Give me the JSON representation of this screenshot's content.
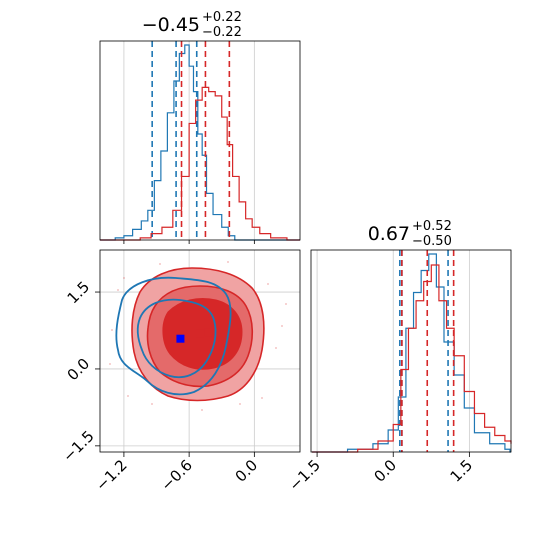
{
  "chart_data": {
    "type": "corner",
    "parameters": [
      {
        "title_value": "−0.45",
        "title_plus": "+0.22",
        "title_minus": "−0.22"
      },
      {
        "title_value": "0.67",
        "title_plus": "+0.52",
        "title_minus": "−0.50"
      }
    ],
    "axis_ranges": {
      "x0": [
        -1.42,
        0.42
      ],
      "x1": [
        -1.62,
        2.32
      ]
    },
    "ticks": {
      "p0_x": [
        {
          "value": -1.2,
          "label": "−1.2"
        },
        {
          "value": -0.6,
          "label": "−0.6"
        },
        {
          "value": 0.0,
          "label": "0.0"
        }
      ],
      "p1": [
        {
          "value": -1.5,
          "label": "−1.5"
        },
        {
          "value": 0.0,
          "label": "0.0"
        },
        {
          "value": 1.5,
          "label": "1.5"
        }
      ]
    },
    "grid": true,
    "series": [
      {
        "color": "#1f77b4",
        "quantiles_p0": [
          -0.94,
          -0.72,
          -0.53
        ],
        "quantiles_p1": [
          0.13,
          0.17,
          1.08
        ],
        "hist_p0": [
          {
            "x": -1.42,
            "y": 0
          },
          {
            "x": -1.28,
            "y": 1
          },
          {
            "x": -1.2,
            "y": 2
          },
          {
            "x": -1.12,
            "y": 5
          },
          {
            "x": -1.04,
            "y": 9
          },
          {
            "x": -0.98,
            "y": 14
          },
          {
            "x": -0.92,
            "y": 28
          },
          {
            "x": -0.86,
            "y": 42
          },
          {
            "x": -0.8,
            "y": 60
          },
          {
            "x": -0.74,
            "y": 75
          },
          {
            "x": -0.69,
            "y": 88
          },
          {
            "x": -0.64,
            "y": 92
          },
          {
            "x": -0.6,
            "y": 82
          },
          {
            "x": -0.56,
            "y": 70
          },
          {
            "x": -0.52,
            "y": 50
          },
          {
            "x": -0.48,
            "y": 40
          },
          {
            "x": -0.44,
            "y": 22
          },
          {
            "x": -0.38,
            "y": 12
          },
          {
            "x": -0.3,
            "y": 6
          },
          {
            "x": -0.24,
            "y": 2
          },
          {
            "x": -0.18,
            "y": 0
          }
        ],
        "hist_p1": [
          {
            "x": -1.6,
            "y": 0
          },
          {
            "x": -0.9,
            "y": 1
          },
          {
            "x": -0.4,
            "y": 3
          },
          {
            "x": -0.1,
            "y": 8
          },
          {
            "x": 0.1,
            "y": 20
          },
          {
            "x": 0.25,
            "y": 45
          },
          {
            "x": 0.4,
            "y": 58
          },
          {
            "x": 0.55,
            "y": 66
          },
          {
            "x": 0.7,
            "y": 72
          },
          {
            "x": 0.85,
            "y": 60
          },
          {
            "x": 1.0,
            "y": 40
          },
          {
            "x": 1.2,
            "y": 28
          },
          {
            "x": 1.4,
            "y": 16
          },
          {
            "x": 1.6,
            "y": 7
          },
          {
            "x": 1.9,
            "y": 3
          },
          {
            "x": 2.2,
            "y": 1
          },
          {
            "x": 2.3,
            "y": 0
          }
        ],
        "best_fit": [
          -0.68,
          0.59
        ]
      },
      {
        "color": "#d62728",
        "quantiles_p0": [
          -0.67,
          -0.45,
          -0.23
        ],
        "quantiles_p1": [
          0.17,
          0.67,
          1.19
        ],
        "hist_p0": [
          {
            "x": -1.42,
            "y": 0
          },
          {
            "x": -1.05,
            "y": 1
          },
          {
            "x": -0.95,
            "y": 3
          },
          {
            "x": -0.85,
            "y": 6
          },
          {
            "x": -0.75,
            "y": 14
          },
          {
            "x": -0.67,
            "y": 30
          },
          {
            "x": -0.6,
            "y": 55
          },
          {
            "x": -0.54,
            "y": 66
          },
          {
            "x": -0.48,
            "y": 72
          },
          {
            "x": -0.42,
            "y": 70
          },
          {
            "x": -0.36,
            "y": 68
          },
          {
            "x": -0.3,
            "y": 58
          },
          {
            "x": -0.25,
            "y": 45
          },
          {
            "x": -0.2,
            "y": 30
          },
          {
            "x": -0.14,
            "y": 18
          },
          {
            "x": -0.08,
            "y": 10
          },
          {
            "x": -0.02,
            "y": 6
          },
          {
            "x": 0.05,
            "y": 3
          },
          {
            "x": 0.15,
            "y": 1
          },
          {
            "x": 0.3,
            "y": 0
          }
        ],
        "hist_p1": [
          {
            "x": -1.6,
            "y": 0
          },
          {
            "x": -0.7,
            "y": 1
          },
          {
            "x": -0.3,
            "y": 4
          },
          {
            "x": 0.0,
            "y": 10
          },
          {
            "x": 0.15,
            "y": 30
          },
          {
            "x": 0.3,
            "y": 45
          },
          {
            "x": 0.45,
            "y": 55
          },
          {
            "x": 0.6,
            "y": 62
          },
          {
            "x": 0.75,
            "y": 68
          },
          {
            "x": 0.9,
            "y": 55
          },
          {
            "x": 1.05,
            "y": 45
          },
          {
            "x": 1.2,
            "y": 35
          },
          {
            "x": 1.4,
            "y": 22
          },
          {
            "x": 1.6,
            "y": 14
          },
          {
            "x": 1.8,
            "y": 9
          },
          {
            "x": 2.0,
            "y": 6
          },
          {
            "x": 2.2,
            "y": 4
          },
          {
            "x": 2.32,
            "y": 3
          }
        ],
        "best_fit": [
          -0.5,
          0.7
        ]
      }
    ],
    "extra_point": {
      "color": "#d62728",
      "x": -0.42,
      "y": 0.72
    }
  }
}
